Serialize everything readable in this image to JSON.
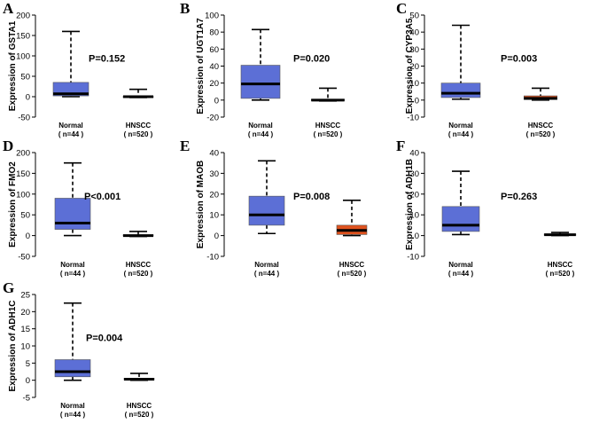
{
  "chart_data": [
    {
      "type": "box",
      "panel": "A",
      "ylabel": "Expression of GSTA1",
      "ylim": [
        -50,
        200
      ],
      "yticks": [
        -50,
        0,
        50,
        100,
        150,
        200
      ],
      "pvalue": "P=0.152",
      "groups": [
        {
          "name": "Normal",
          "n": "( n=44 )",
          "min": 0,
          "q1": 2,
          "median": 7,
          "q3": 35,
          "max": 160,
          "color": "#5c6fd6"
        },
        {
          "name": "HNSCC",
          "n": "( n=520 )",
          "min": -2,
          "q1": -1,
          "median": 0,
          "q3": 1,
          "max": 18,
          "color": "#e0531f"
        }
      ]
    },
    {
      "type": "box",
      "panel": "B",
      "ylabel": "Expression of UGT1A7",
      "ylim": [
        -20,
        100
      ],
      "yticks": [
        -20,
        0,
        20,
        40,
        60,
        80,
        100
      ],
      "pvalue": "P=0.020",
      "groups": [
        {
          "name": "Normal",
          "n": "( n=44 )",
          "min": 0,
          "q1": 2,
          "median": 19,
          "q3": 41,
          "max": 83,
          "color": "#5c6fd6"
        },
        {
          "name": "HNSCC",
          "n": "( n=520 )",
          "min": -1,
          "q1": -0.5,
          "median": 0,
          "q3": 1,
          "max": 14,
          "color": "#e0531f"
        }
      ]
    },
    {
      "type": "box",
      "panel": "C",
      "ylabel": "Expression of CYP3A5",
      "ylim": [
        -10,
        50
      ],
      "yticks": [
        -10,
        0,
        10,
        20,
        30,
        40,
        50
      ],
      "pvalue": "P=0.003",
      "groups": [
        {
          "name": "Normal",
          "n": "( n=44 )",
          "min": 0.5,
          "q1": 1.5,
          "median": 4,
          "q3": 10,
          "max": 44,
          "color": "#5c6fd6"
        },
        {
          "name": "HNSCC",
          "n": "( n=520 )",
          "min": 0,
          "q1": 0.3,
          "median": 1,
          "q3": 2.5,
          "max": 7,
          "color": "#e0531f"
        }
      ]
    },
    {
      "type": "box",
      "panel": "D",
      "ylabel": "Expression of FMO2",
      "ylim": [
        -50,
        200
      ],
      "yticks": [
        -50,
        0,
        50,
        100,
        150,
        200
      ],
      "pvalue": "P<0.001",
      "groups": [
        {
          "name": "Normal",
          "n": "( n=44 )",
          "min": 0,
          "q1": 15,
          "median": 30,
          "q3": 90,
          "max": 175,
          "color": "#5c6fd6"
        },
        {
          "name": "HNSCC",
          "n": "( n=520 )",
          "min": -2,
          "q1": -1,
          "median": 0,
          "q3": 2,
          "max": 10,
          "color": "#e0531f"
        }
      ]
    },
    {
      "type": "box",
      "panel": "E",
      "ylabel": "Expression of MAOB",
      "ylim": [
        -10,
        40
      ],
      "yticks": [
        -10,
        0,
        10,
        20,
        30,
        40
      ],
      "pvalue": "P=0.008",
      "groups": [
        {
          "name": "Normal",
          "n": "( n=44 )",
          "min": 1,
          "q1": 5,
          "median": 10,
          "q3": 19,
          "max": 36,
          "color": "#5c6fd6"
        },
        {
          "name": "HNSCC",
          "n": "( n=520 )",
          "min": 0,
          "q1": 0.5,
          "median": 2.5,
          "q3": 5,
          "max": 17,
          "color": "#e0531f"
        }
      ]
    },
    {
      "type": "box",
      "panel": "F",
      "ylabel": "Expression of ADH1B",
      "ylim": [
        -10,
        40
      ],
      "yticks": [
        -10,
        0,
        10,
        20,
        30,
        40
      ],
      "pvalue": "P=0.263",
      "groups": [
        {
          "name": "Normal",
          "n": "( n=44 )",
          "min": 0.5,
          "q1": 2,
          "median": 5,
          "q3": 14,
          "max": 31,
          "color": "#5c6fd6"
        },
        {
          "name": "HNSCC",
          "n": "( n=520 )",
          "min": 0,
          "q1": 0.1,
          "median": 0.4,
          "q3": 0.8,
          "max": 1.5,
          "color": "#e0531f"
        }
      ]
    },
    {
      "type": "box",
      "panel": "G",
      "ylabel": "Expression of ADH1C",
      "ylim": [
        -5,
        25
      ],
      "yticks": [
        -5,
        0,
        5,
        10,
        15,
        20,
        25
      ],
      "pvalue": "P=0.004",
      "groups": [
        {
          "name": "Normal",
          "n": "( n=44 )",
          "min": 0,
          "q1": 1,
          "median": 2.5,
          "q3": 6,
          "max": 22.5,
          "color": "#5c6fd6"
        },
        {
          "name": "HNSCC",
          "n": "( n=520 )",
          "min": 0,
          "q1": 0.1,
          "median": 0.3,
          "q3": 0.6,
          "max": 2,
          "color": "#e0531f"
        }
      ]
    }
  ]
}
